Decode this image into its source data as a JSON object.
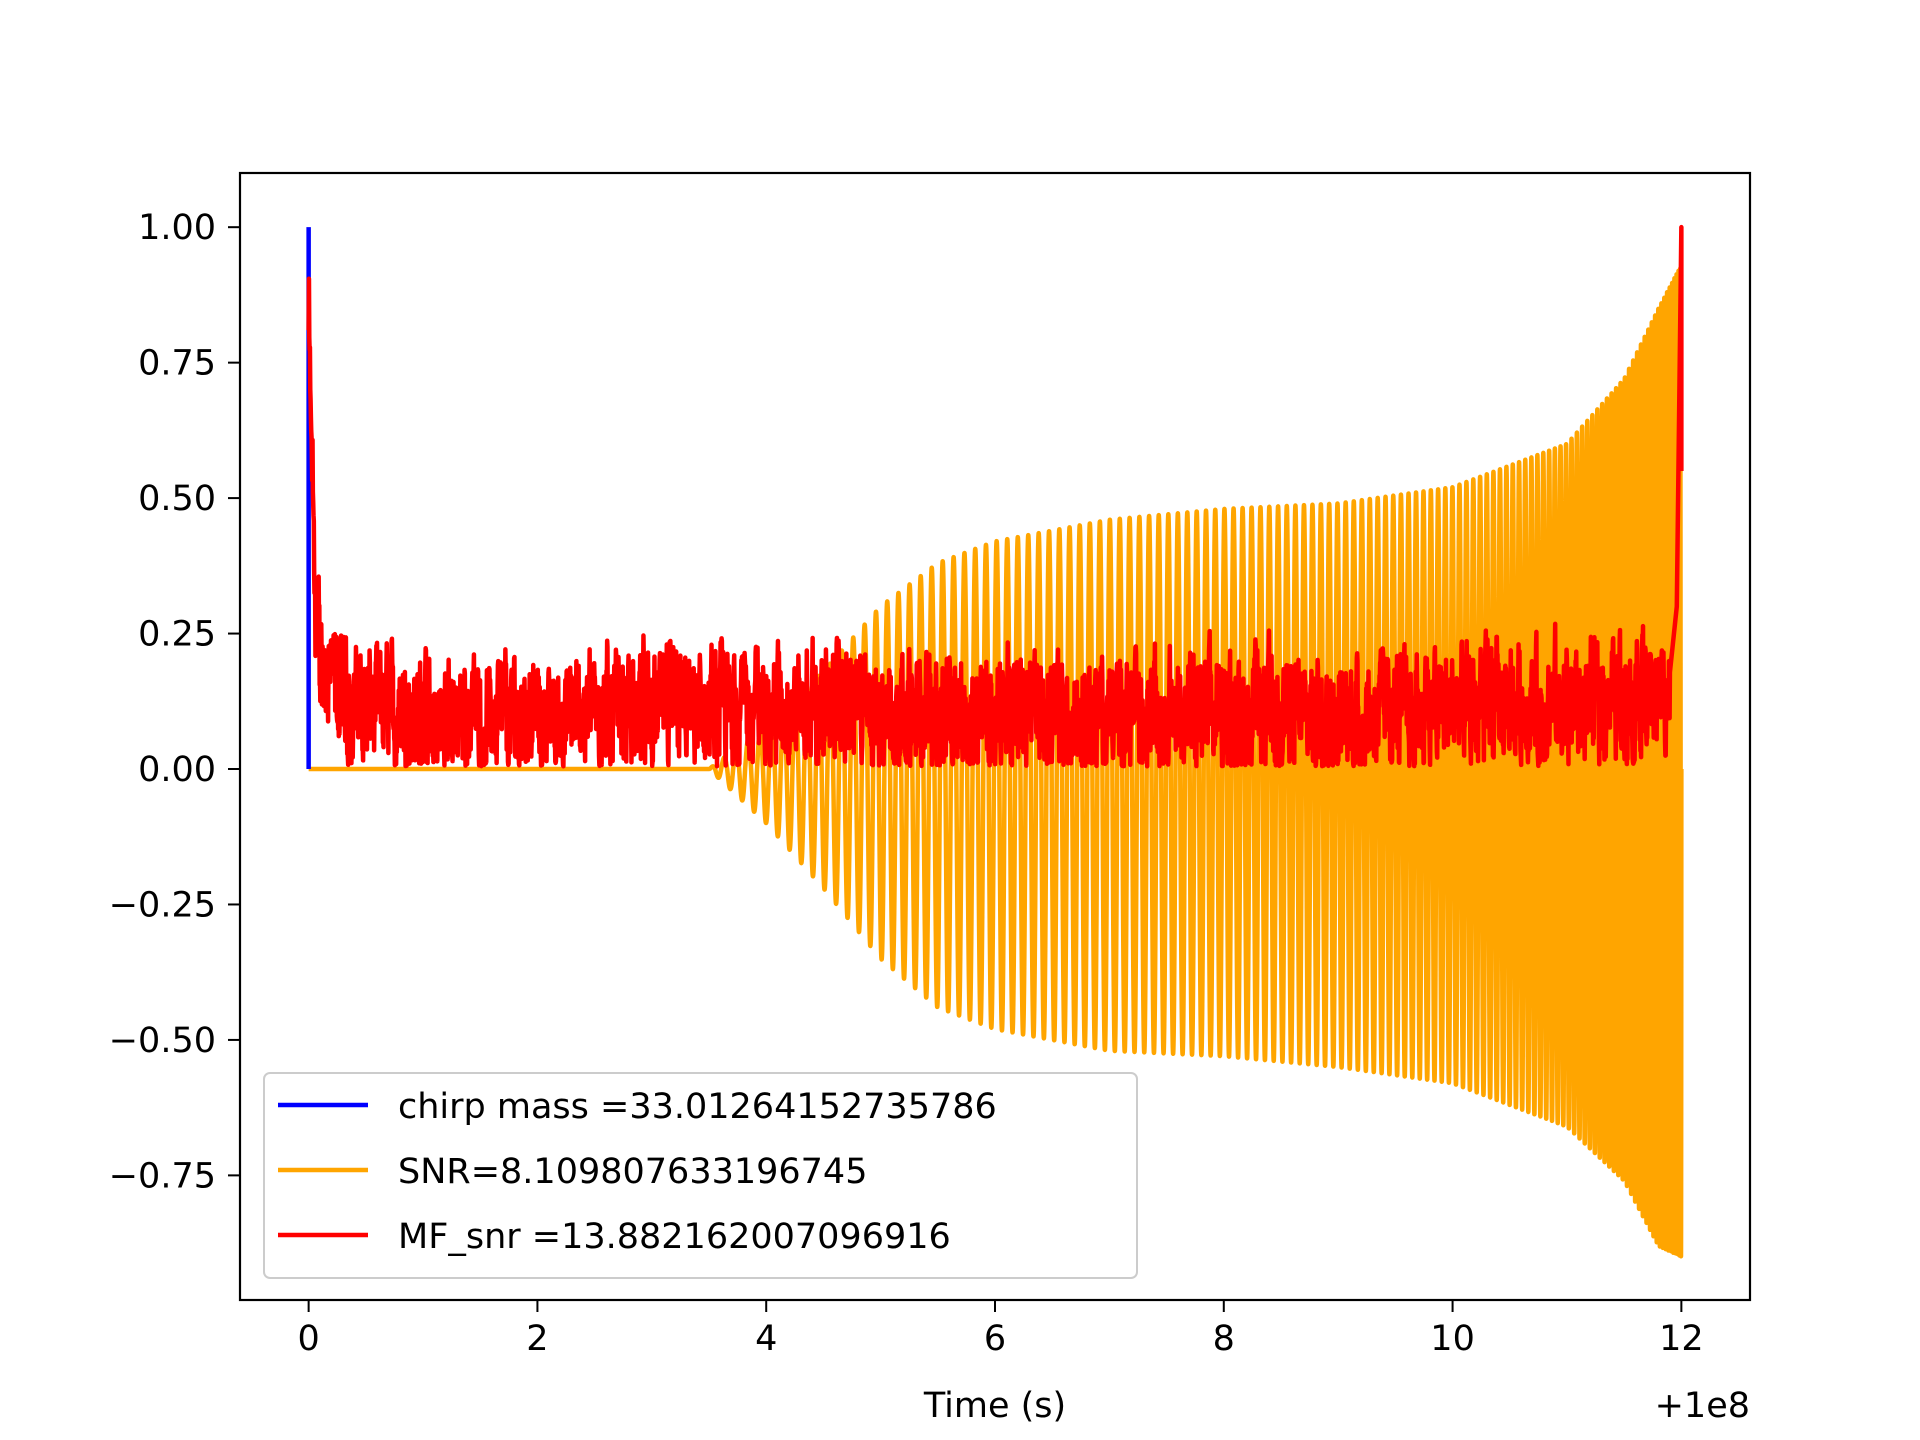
{
  "chart_data": {
    "type": "line",
    "xlabel": "Time (s)",
    "ylabel": "",
    "x_offset_label": "+1e8",
    "xlim": [
      -0.6,
      12.6
    ],
    "ylim": [
      -0.98,
      1.1
    ],
    "xticks": [
      0,
      2,
      4,
      6,
      8,
      10,
      12
    ],
    "xtick_labels": [
      "0",
      "2",
      "4",
      "6",
      "8",
      "10",
      "12"
    ],
    "yticks": [
      1.0,
      0.75,
      0.5,
      0.25,
      0.0,
      -0.25,
      -0.5,
      -0.75
    ],
    "ytick_labels": [
      "1.00",
      "0.75",
      "0.50",
      "0.25",
      "0.00",
      "−0.25",
      "−0.50",
      "−0.75"
    ],
    "grid": false,
    "legend_position": "lower-left",
    "series": [
      {
        "name": "chirp mass =33.01264152735786",
        "color": "#0000ff",
        "description_points": {
          "x": [
            0.0,
            0.0,
            0.0
          ],
          "y": [
            0.0,
            1.0,
            0.0
          ]
        }
      },
      {
        "name": "SNR=8.109807633196745",
        "color": "#ffa500",
        "envelope": {
          "x": [
            0.0,
            3.5,
            4.0,
            4.5,
            5.0,
            5.5,
            6.0,
            7.0,
            8.0,
            9.0,
            10.0,
            11.0,
            11.5,
            11.8,
            12.0
          ],
          "upper": [
            0.0,
            0.0,
            0.08,
            0.18,
            0.3,
            0.38,
            0.42,
            0.46,
            0.48,
            0.49,
            0.52,
            0.6,
            0.72,
            0.85,
            0.93
          ],
          "lower": [
            0.0,
            0.0,
            -0.1,
            -0.22,
            -0.35,
            -0.44,
            -0.48,
            -0.52,
            -0.53,
            -0.55,
            -0.58,
            -0.66,
            -0.76,
            -0.88,
            -0.9
          ]
        }
      },
      {
        "name": "MF_snr =13.882162007096916",
        "color": "#ff0000",
        "description_points": {
          "x": [
            0.0,
            0.05,
            0.1,
            0.3,
            1.0,
            2.0,
            3.0,
            4.0,
            5.0,
            6.0,
            7.0,
            8.0,
            9.0,
            10.0,
            11.0,
            11.9,
            12.0
          ],
          "y": [
            0.81,
            0.35,
            0.2,
            0.12,
            0.1,
            0.1,
            0.1,
            0.12,
            0.1,
            0.1,
            0.1,
            0.1,
            0.1,
            0.11,
            0.12,
            0.15,
            1.0
          ]
        }
      }
    ]
  }
}
